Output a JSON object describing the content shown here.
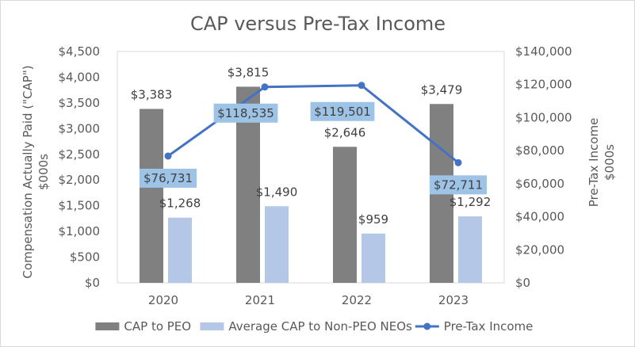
{
  "chart_data": {
    "type": "bar",
    "title": "CAP versus Pre-Tax Income",
    "categories": [
      "2020",
      "2021",
      "2022",
      "2023"
    ],
    "ylabel": "Compensation Actually Paid (\"CAP\")",
    "ylabel_unit": "$000s",
    "y2label": "Pre-Tax Income",
    "y2label_unit": "$000s",
    "ylim": [
      0,
      4500
    ],
    "y_ticks": [
      0,
      500,
      1000,
      1500,
      2000,
      2500,
      3000,
      3500,
      4000,
      4500
    ],
    "y_tick_labels": [
      "$0",
      "$500",
      "$1,000",
      "$1,500",
      "$2,000",
      "$2,500",
      "$3,000",
      "$3,500",
      "$4,000",
      "$4,500"
    ],
    "y2lim": [
      0,
      140000
    ],
    "y2_ticks": [
      0,
      20000,
      40000,
      60000,
      80000,
      100000,
      120000,
      140000
    ],
    "y2_tick_labels": [
      "$0",
      "$20,000",
      "$40,000",
      "$60,000",
      "$80,000",
      "$100,000",
      "$120,000",
      "$140,000"
    ],
    "grid": false,
    "legend_position": "bottom",
    "series": [
      {
        "name": "CAP to PEO",
        "kind": "bar",
        "axis": "left",
        "color": "#808080",
        "values": [
          3383,
          3815,
          2646,
          3479
        ],
        "labels": [
          "$3,383",
          "$3,815",
          "$2,646",
          "$3,479"
        ]
      },
      {
        "name": "Average CAP to Non-PEO NEOs",
        "kind": "bar",
        "axis": "left",
        "color": "#b4c7e7",
        "values": [
          1268,
          1490,
          959,
          1292
        ],
        "labels": [
          "$1,268",
          "$1,490",
          "$959",
          "$1,292"
        ]
      },
      {
        "name": "Pre-Tax Income",
        "kind": "line",
        "axis": "right",
        "color": "#4472c4",
        "label_bg": "#9dc3e6",
        "values": [
          76731,
          118535,
          119501,
          72711
        ],
        "labels": [
          "$76,731",
          "$118,535",
          "$119,501",
          "$72,711"
        ]
      }
    ]
  }
}
